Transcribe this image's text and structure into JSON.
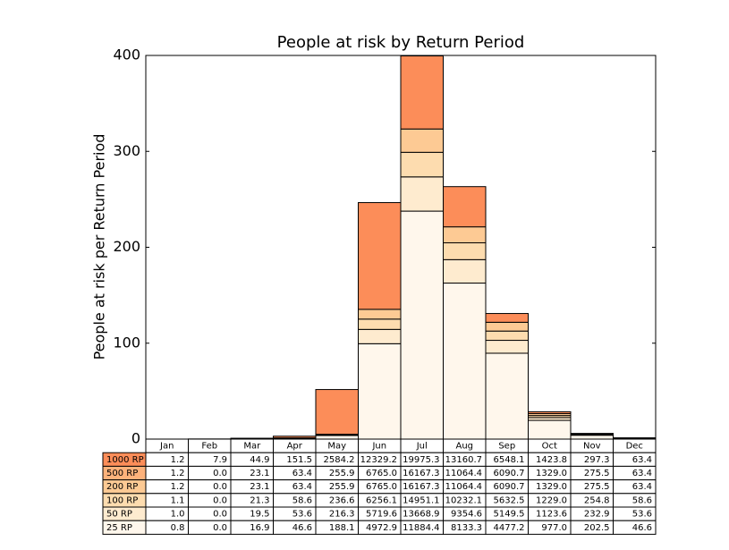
{
  "chart_data": {
    "type": "stacked-bar",
    "title": "People at risk by Return Period",
    "y_label": "People at risk per Return Period",
    "categories": [
      "Jan",
      "Feb",
      "Mar",
      "Apr",
      "May",
      "Jun",
      "Jul",
      "Aug",
      "Sep",
      "Oct",
      "Nov",
      "Dec"
    ],
    "ylim": [
      0,
      400
    ],
    "yticks": [
      0,
      100,
      200,
      300,
      400
    ],
    "series": [
      {
        "name": "25 RP",
        "color": "#fff7ec",
        "values": [
          0.02,
          0,
          0.34,
          0.93,
          3.76,
          99.46,
          237.69,
          162.67,
          89.54,
          19.54,
          4.05,
          0.93
        ],
        "table_row": [
          "0.8",
          "0.0",
          "16.9",
          "46.6",
          "188.1",
          "4972.9",
          "11884.4",
          "8133.3",
          "4477.2",
          "977.0",
          "202.5",
          "46.6"
        ]
      },
      {
        "name": "50 RP",
        "color": "#feebcf",
        "values": [
          0,
          0,
          0.05,
          0.14,
          0.56,
          14.93,
          35.69,
          24.43,
          13.45,
          2.93,
          0.61,
          0.14
        ],
        "table_row": [
          "1.0",
          "0.0",
          "19.5",
          "53.6",
          "216.3",
          "5719.6",
          "13668.9",
          "9354.6",
          "5149.5",
          "1123.6",
          "232.9",
          "53.6"
        ]
      },
      {
        "name": "100 RP",
        "color": "#fddcaf",
        "values": [
          0,
          0,
          0.04,
          0.1,
          0.41,
          10.73,
          25.64,
          17.55,
          9.66,
          2.11,
          0.44,
          0.1
        ],
        "table_row": [
          "1.1",
          "0.0",
          "21.3",
          "58.6",
          "236.6",
          "6256.1",
          "14951.1",
          "10232.1",
          "5632.5",
          "1229.0",
          "254.8",
          "58.6"
        ]
      },
      {
        "name": "200 RP",
        "color": "#fdca94",
        "values": [
          0,
          0,
          0.04,
          0.1,
          0.39,
          10.18,
          24.32,
          16.65,
          9.16,
          2.0,
          0.41,
          0.1
        ],
        "table_row": [
          "1.2",
          "0.0",
          "23.1",
          "63.4",
          "255.9",
          "6765.0",
          "16167.3",
          "11064.4",
          "6090.7",
          "1329.0",
          "275.5",
          "63.4"
        ]
      },
      {
        "name": "500 RP",
        "color": "#fdb27b",
        "values": [
          0,
          0,
          0,
          0,
          0,
          0,
          0,
          0,
          0,
          0,
          0,
          0
        ],
        "table_row": [
          "1.2",
          "0.0",
          "23.1",
          "63.4",
          "255.9",
          "6765.0",
          "16167.3",
          "11064.4",
          "6090.7",
          "1329.0",
          "275.5",
          "63.4"
        ]
      },
      {
        "name": "1000 RP",
        "color": "#fc8d59",
        "values": [
          0,
          0.16,
          0.44,
          1.76,
          46.57,
          111.28,
          76.16,
          41.93,
          9.15,
          1.9,
          0.44,
          0
        ],
        "table_row": [
          "1.2",
          "7.9",
          "44.9",
          "151.5",
          "2584.2",
          "12329.2",
          "19975.3",
          "13160.7",
          "6548.1",
          "1423.8",
          "297.3",
          "63.4"
        ]
      }
    ]
  }
}
